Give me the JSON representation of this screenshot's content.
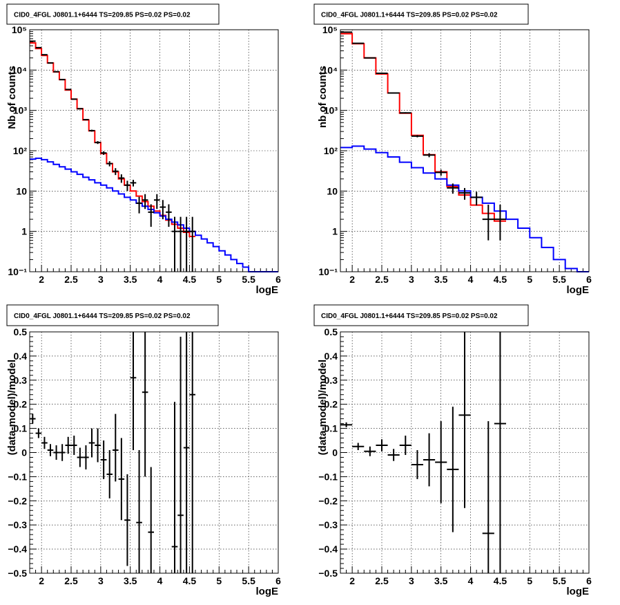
{
  "colors": {
    "total_model": "#ff0000",
    "background_model": "#0000ff",
    "data": "#000000"
  },
  "chart_data": [
    {
      "type": "line",
      "title": "CID0_4FGL J0801.1+6444 TS=209.85 PS=0.02 PS=0.02",
      "xlabel": "logE",
      "ylabel": "Nb of counts",
      "xlim": [
        1.8,
        6.0
      ],
      "ylim": [
        0.1,
        100000
      ],
      "yscale": "log",
      "xticks": [
        "2",
        "2.5",
        "3",
        "3.5",
        "4",
        "4.5",
        "5",
        "5.5",
        "6"
      ],
      "yticks": [
        "10⁻¹",
        "1",
        "10",
        "10²",
        "10³",
        "10⁴",
        "10⁵"
      ],
      "grid": true,
      "series": [
        {
          "color_key": "total_model",
          "kind": "step",
          "bin_width": 0.1,
          "x": [
            1.85,
            1.95,
            2.05,
            2.15,
            2.25,
            2.35,
            2.45,
            2.55,
            2.65,
            2.75,
            2.85,
            2.95,
            3.05,
            3.15,
            3.25,
            3.35,
            3.45,
            3.55,
            3.65,
            3.75,
            3.85,
            3.95,
            4.05,
            4.15,
            4.25,
            4.35,
            4.45,
            4.55
          ],
          "y": [
            47000,
            34000,
            23000,
            15000,
            9000,
            5800,
            3200,
            1900,
            1100,
            580,
            310,
            160,
            85,
            48,
            30,
            20,
            14,
            10,
            7.5,
            5.5,
            4.2,
            3.2,
            2.5,
            1.9,
            1.5,
            1.2,
            0.95,
            0.75
          ]
        },
        {
          "color_key": "background_model",
          "kind": "step",
          "bin_width": 0.1,
          "x": [
            1.85,
            1.95,
            2.05,
            2.15,
            2.25,
            2.35,
            2.45,
            2.55,
            2.65,
            2.75,
            2.85,
            2.95,
            3.05,
            3.15,
            3.25,
            3.35,
            3.45,
            3.55,
            3.65,
            3.75,
            3.85,
            3.95,
            4.05,
            4.15,
            4.25,
            4.35,
            4.45,
            4.55,
            4.65,
            4.75,
            4.85,
            4.95,
            5.05,
            5.15,
            5.25,
            5.35,
            5.45,
            5.55,
            5.65,
            5.75,
            5.85,
            5.95
          ],
          "y": [
            62,
            65,
            60,
            53,
            46,
            40,
            35,
            30,
            26,
            22,
            19,
            16,
            14,
            12,
            10,
            8.5,
            7,
            6,
            5,
            4.2,
            3.5,
            2.9,
            2.4,
            2,
            1.7,
            1.45,
            1.2,
            1,
            0.8,
            0.65,
            0.52,
            0.42,
            0.33,
            0.26,
            0.2,
            0.16,
            0.13,
            0.1,
            0.1,
            0.1,
            0.1,
            0.1
          ]
        },
        {
          "color_key": "data",
          "kind": "errorbar",
          "bin_width": 0.1,
          "x": [
            1.85,
            1.95,
            2.05,
            2.15,
            2.25,
            2.35,
            2.45,
            2.55,
            2.65,
            2.75,
            2.85,
            2.95,
            3.05,
            3.15,
            3.25,
            3.35,
            3.45,
            3.55,
            3.65,
            3.75,
            3.85,
            3.95,
            4.05,
            4.15,
            4.25,
            4.35,
            4.45,
            4.55
          ],
          "y": [
            52000,
            36000,
            24000,
            15000,
            9100,
            5800,
            3300,
            1900,
            1100,
            590,
            315,
            160,
            88,
            48,
            31,
            21,
            14,
            16,
            5,
            6,
            3,
            6,
            4,
            3,
            1,
            1,
            1,
            1
          ],
          "ylo": [
            51800,
            35800,
            23800,
            14900,
            9000,
            5720,
            3240,
            1860,
            1070,
            566,
            298,
            147,
            79,
            41,
            25,
            16,
            10,
            13,
            2.8,
            3.6,
            1.3,
            3.6,
            2,
            1.3,
            0,
            0,
            0,
            0
          ],
          "yhi": [
            52200,
            36200,
            24200,
            15100,
            9200,
            5880,
            3360,
            1940,
            1130,
            614,
            332,
            173,
            97,
            55,
            37,
            26,
            18,
            19,
            7.2,
            8.4,
            4.7,
            8.4,
            6,
            4.7,
            2.3,
            2.3,
            2.3,
            2.3
          ]
        }
      ]
    },
    {
      "type": "line",
      "title": "CID0_4FGL J0801.1+6444 TS=209.85 PS=0.02 PS=0.02",
      "xlabel": "logE",
      "ylabel": "nb of counts",
      "xlim": [
        1.8,
        6.0
      ],
      "ylim": [
        0.1,
        100000
      ],
      "yscale": "log",
      "xticks": [
        "2",
        "2.5",
        "3",
        "3.5",
        "4",
        "4.5",
        "5",
        "5.5",
        "6"
      ],
      "yticks": [
        "10⁻¹",
        "1",
        "10",
        "10²",
        "10³",
        "10⁴",
        "10⁵"
      ],
      "grid": true,
      "series": [
        {
          "color_key": "total_model",
          "kind": "step",
          "bin_width": 0.2,
          "x": [
            1.9,
            2.1,
            2.3,
            2.5,
            2.7,
            2.9,
            3.1,
            3.3,
            3.5,
            3.7,
            3.9,
            4.1,
            4.3,
            4.5
          ],
          "y": [
            80000,
            45000,
            20000,
            8000,
            2700,
            850,
            240,
            80,
            30,
            13,
            8,
            4.5,
            2.8,
            1.8
          ]
        },
        {
          "color_key": "background_model",
          "kind": "step",
          "bin_width": 0.2,
          "x": [
            1.9,
            2.1,
            2.3,
            2.5,
            2.7,
            2.9,
            3.1,
            3.3,
            3.5,
            3.7,
            3.9,
            4.1,
            4.3,
            4.5,
            4.7,
            4.9,
            5.1,
            5.3,
            5.5,
            5.7,
            5.9
          ],
          "y": [
            120,
            130,
            110,
            90,
            70,
            52,
            38,
            28,
            20,
            14,
            10,
            7,
            5,
            3.2,
            2,
            1.2,
            0.7,
            0.4,
            0.2,
            0.12,
            0.1
          ]
        },
        {
          "color_key": "data",
          "kind": "errorbar",
          "bin_width": 0.2,
          "x": [
            1.9,
            2.1,
            2.3,
            2.5,
            2.7,
            2.9,
            3.1,
            3.3,
            3.5,
            3.7,
            3.9,
            4.1,
            4.3,
            4.5
          ],
          "y": [
            87000,
            46000,
            20000,
            8300,
            2700,
            870,
            230,
            78,
            29,
            12,
            9,
            7,
            2,
            2
          ],
          "ylo": [
            86700,
            45800,
            19860,
            8210,
            2650,
            840,
            215,
            69,
            24,
            8.6,
            6.1,
            4.4,
            0.6,
            0.6
          ],
          "yhi": [
            87300,
            46200,
            20140,
            8390,
            2750,
            900,
            245,
            87,
            34,
            15.4,
            11.9,
            9.6,
            4.6,
            4.6
          ]
        }
      ]
    },
    {
      "type": "scatter",
      "title": "CID0_4FGL J0801.1+6444 TS=209.85 PS=0.02 PS=0.02",
      "xlabel": "logE",
      "ylabel": "(data-model)/model",
      "xlim": [
        1.8,
        6.0
      ],
      "ylim": [
        -0.5,
        0.5
      ],
      "xticks": [
        "2",
        "2.5",
        "3",
        "3.5",
        "4",
        "4.5",
        "5",
        "5.5",
        "6"
      ],
      "yticks": [
        "−0.5",
        "−0.4",
        "−0.3",
        "−0.2",
        "−0.1",
        "0",
        "0.1",
        "0.2",
        "0.3",
        "0.4",
        "0.5"
      ],
      "grid": true,
      "series": [
        {
          "color_key": "data",
          "kind": "errorbar",
          "bin_width": 0.1,
          "x": [
            1.85,
            1.95,
            2.05,
            2.15,
            2.25,
            2.35,
            2.45,
            2.55,
            2.65,
            2.75,
            2.85,
            2.95,
            3.05,
            3.15,
            3.25,
            3.35,
            3.45,
            3.55,
            3.65,
            3.75,
            3.85,
            4.25,
            4.35,
            4.45,
            4.55
          ],
          "y": [
            0.14,
            0.08,
            0.04,
            0.01,
            0.0,
            0.0,
            0.03,
            0.03,
            -0.02,
            -0.02,
            0.04,
            0.03,
            -0.03,
            -0.09,
            0.01,
            -0.11,
            -0.28,
            0.31,
            -0.29,
            0.25,
            -0.33,
            -0.39,
            -0.26,
            0.02,
            0.24
          ],
          "ylo": [
            0.12,
            0.06,
            0.015,
            -0.015,
            -0.03,
            -0.035,
            -0.005,
            -0.01,
            -0.06,
            -0.07,
            -0.02,
            -0.04,
            -0.11,
            -0.19,
            -0.12,
            -0.28,
            -0.47,
            0.01,
            -0.6,
            -0.1,
            -0.6,
            -0.6,
            -0.6,
            -0.6,
            -0.6
          ],
          "yhi": [
            0.16,
            0.1,
            0.065,
            0.035,
            0.03,
            0.035,
            0.065,
            0.07,
            0.02,
            0.03,
            0.1,
            0.1,
            0.05,
            0.01,
            0.16,
            0.06,
            -0.09,
            0.6,
            0.01,
            0.6,
            -0.06,
            0.21,
            0.48,
            0.6,
            0.6
          ]
        }
      ]
    },
    {
      "type": "scatter",
      "title": "CID0_4FGL J0801.1+6444 TS=209.85 PS=0.02 PS=0.02",
      "xlabel": "logE",
      "ylabel": "(data-model)/model",
      "xlim": [
        1.8,
        6.0
      ],
      "ylim": [
        -0.5,
        0.5
      ],
      "xticks": [
        "2",
        "2.5",
        "3",
        "3.5",
        "4",
        "4.5",
        "5",
        "5.5",
        "6"
      ],
      "yticks": [
        "−0.5",
        "−0.4",
        "−0.3",
        "−0.2",
        "−0.1",
        "0",
        "0.1",
        "0.2",
        "0.3",
        "0.4",
        "0.5"
      ],
      "grid": true,
      "series": [
        {
          "color_key": "data",
          "kind": "errorbar",
          "bin_width": 0.2,
          "x": [
            1.9,
            2.1,
            2.3,
            2.5,
            2.7,
            2.9,
            3.1,
            3.3,
            3.5,
            3.7,
            3.9,
            4.3,
            4.5
          ],
          "y": [
            0.115,
            0.025,
            0.005,
            0.03,
            -0.01,
            0.03,
            -0.05,
            -0.03,
            -0.04,
            -0.07,
            0.155,
            -0.335,
            0.12
          ],
          "ylo": [
            0.105,
            0.01,
            -0.015,
            0.005,
            -0.035,
            -0.01,
            -0.11,
            -0.14,
            -0.21,
            -0.33,
            -0.23,
            -0.6,
            -0.6
          ],
          "yhi": [
            0.125,
            0.04,
            0.025,
            0.055,
            0.015,
            0.07,
            0.01,
            0.08,
            0.13,
            0.19,
            0.6,
            0.13,
            0.6
          ]
        }
      ]
    }
  ]
}
